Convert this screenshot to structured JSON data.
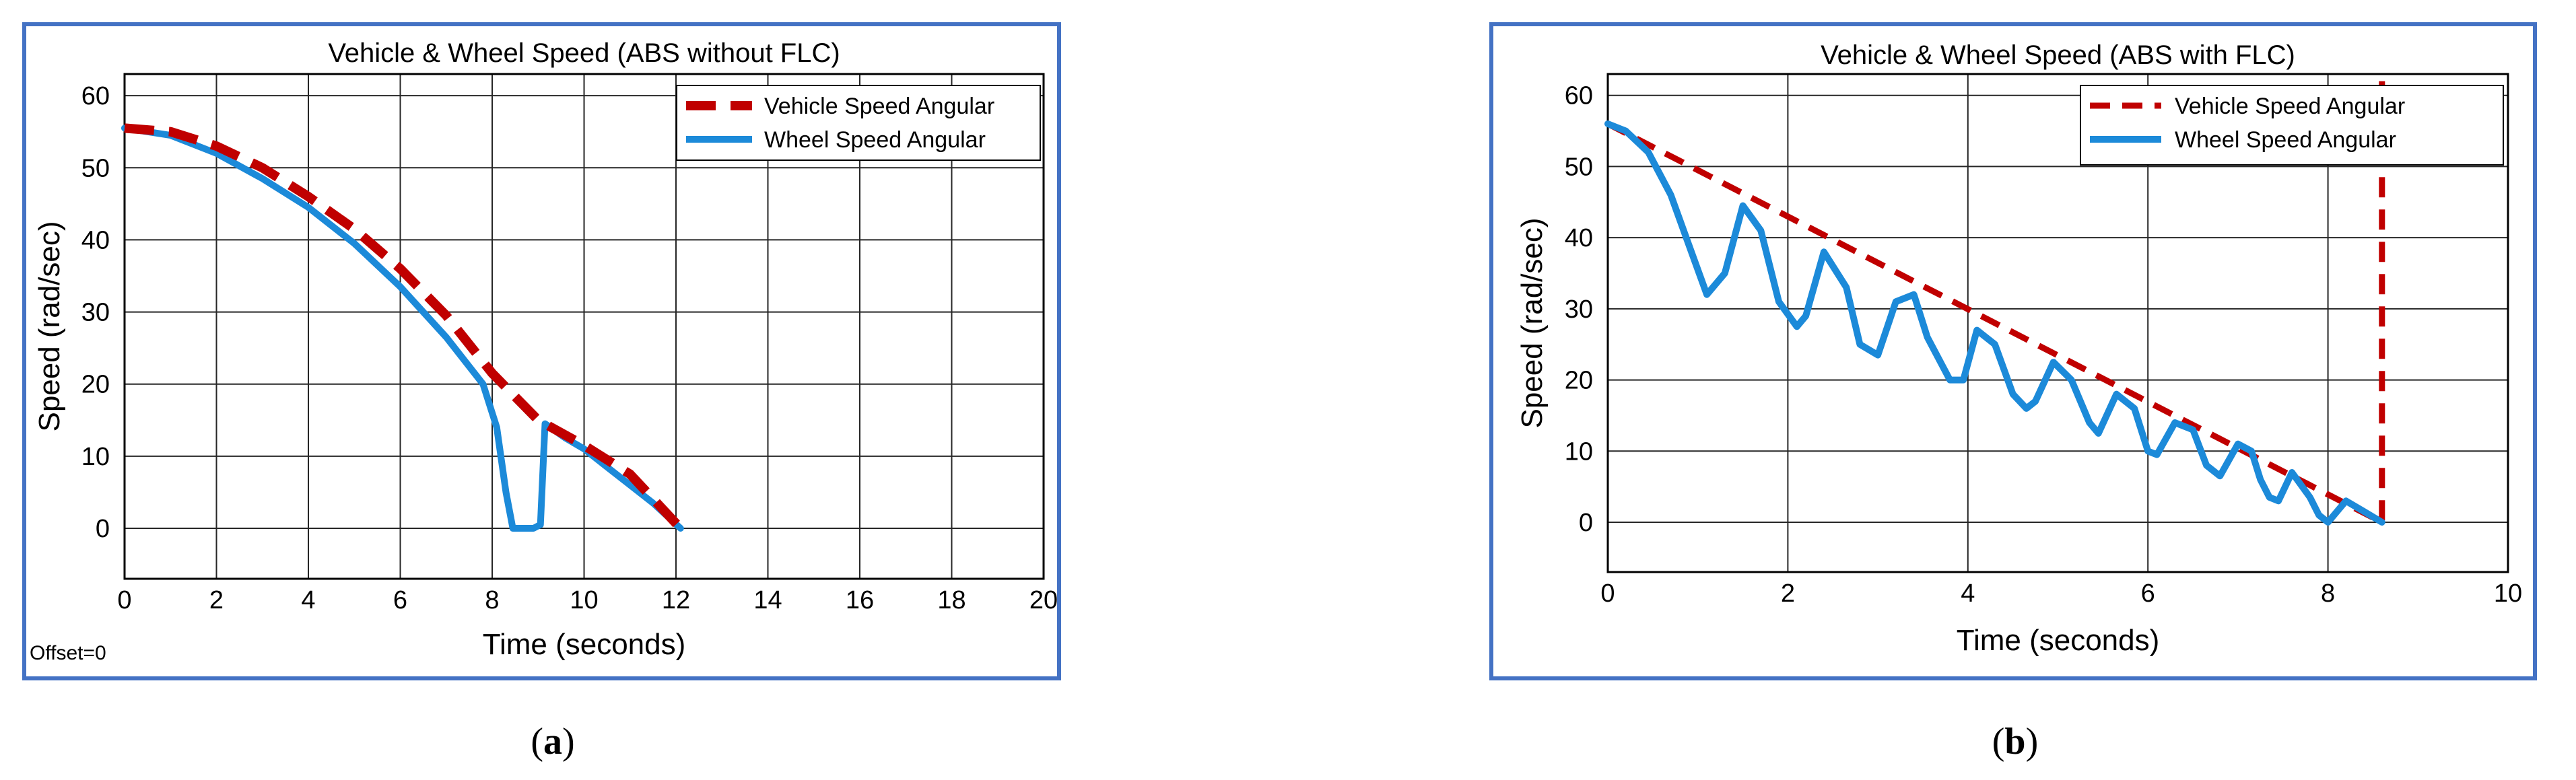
{
  "colors": {
    "vehicle": "#c00000",
    "wheel": "#1c8ad9",
    "frame": "#4472c4",
    "grid": "#262626"
  },
  "panels": [
    {
      "caption_open": "(",
      "caption_letter": "a",
      "caption_close": ")",
      "offset_text": "Offset=0"
    },
    {
      "caption_open": "(",
      "caption_letter": "b",
      "caption_close": ")",
      "offset_text": ""
    }
  ],
  "chart_data": [
    {
      "type": "line",
      "title": "Vehicle & Wheel Speed (ABS without FLC)",
      "xlabel": "Time (seconds)",
      "ylabel": "Speed (rad/sec)",
      "xlim": [
        0,
        20
      ],
      "ylim": [
        -7,
        63
      ],
      "xticks": [
        0,
        2,
        4,
        6,
        8,
        10,
        12,
        14,
        16,
        18,
        20
      ],
      "yticks": [
        0,
        10,
        20,
        30,
        40,
        50,
        60
      ],
      "grid": true,
      "legend": "top-right",
      "series": [
        {
          "name": "Vehicle Speed Angular",
          "style": "dashed",
          "x": [
            0,
            1,
            2,
            3,
            4,
            5,
            6,
            7,
            8,
            9,
            10,
            11,
            12.1
          ],
          "y": [
            55.5,
            55,
            53,
            50,
            46,
            41.5,
            36,
            29.5,
            21.5,
            15,
            11.5,
            7.5,
            0
          ]
        },
        {
          "name": "Wheel Speed Angular",
          "style": "solid",
          "x": [
            0,
            1,
            2,
            3,
            4,
            5,
            6,
            7,
            7.8,
            8.1,
            8.3,
            8.45,
            8.6,
            8.9,
            9.05,
            9.15,
            9.6,
            10,
            10.5,
            11,
            11.5,
            12.1
          ],
          "y": [
            55.5,
            54.5,
            52,
            48.5,
            44.5,
            39.5,
            33.5,
            26.5,
            20,
            14,
            5,
            0,
            0,
            0,
            0.5,
            14.5,
            12.5,
            11,
            8.5,
            6,
            3.5,
            0
          ]
        }
      ]
    },
    {
      "type": "line",
      "title": "Vehicle & Wheel Speed (ABS with FLC)",
      "xlabel": "Time (seconds)",
      "ylabel": "Speed (rad/sec)",
      "xlim": [
        0,
        10
      ],
      "ylim": [
        -7,
        63
      ],
      "xticks": [
        0,
        2,
        4,
        6,
        8,
        10
      ],
      "yticks": [
        0,
        10,
        20,
        30,
        40,
        50,
        60
      ],
      "grid": true,
      "legend": "top-right",
      "series": [
        {
          "name": "Vehicle Speed Angular",
          "style": "dashed",
          "x": [
            0,
            8.6,
            8.6
          ],
          "y": [
            56,
            0,
            62
          ]
        },
        {
          "name": "Wheel Speed Angular",
          "style": "solid",
          "x": [
            0,
            0.2,
            0.45,
            0.7,
            0.9,
            1.1,
            1.3,
            1.5,
            1.7,
            1.9,
            2.1,
            2.2,
            2.4,
            2.65,
            2.8,
            3.0,
            3.2,
            3.4,
            3.55,
            3.8,
            3.95,
            4.1,
            4.3,
            4.5,
            4.65,
            4.75,
            4.95,
            5.15,
            5.35,
            5.45,
            5.65,
            5.85,
            6.0,
            6.1,
            6.3,
            6.5,
            6.65,
            6.8,
            7.0,
            7.15,
            7.25,
            7.35,
            7.45,
            7.6,
            7.8,
            7.9,
            8.0,
            8.2,
            8.4,
            8.6
          ],
          "y": [
            56,
            55,
            52,
            46,
            39,
            32,
            35,
            44.5,
            41,
            31,
            27.5,
            29,
            38,
            33,
            25,
            23.5,
            31,
            32,
            26,
            20,
            20,
            27,
            25,
            18,
            16,
            17,
            22.5,
            20,
            14,
            12.5,
            18,
            16,
            10,
            9.5,
            14,
            13,
            8,
            6.5,
            11,
            10,
            6,
            3.5,
            3,
            7,
            3.5,
            1,
            0,
            3,
            1.5,
            0
          ]
        }
      ]
    }
  ]
}
